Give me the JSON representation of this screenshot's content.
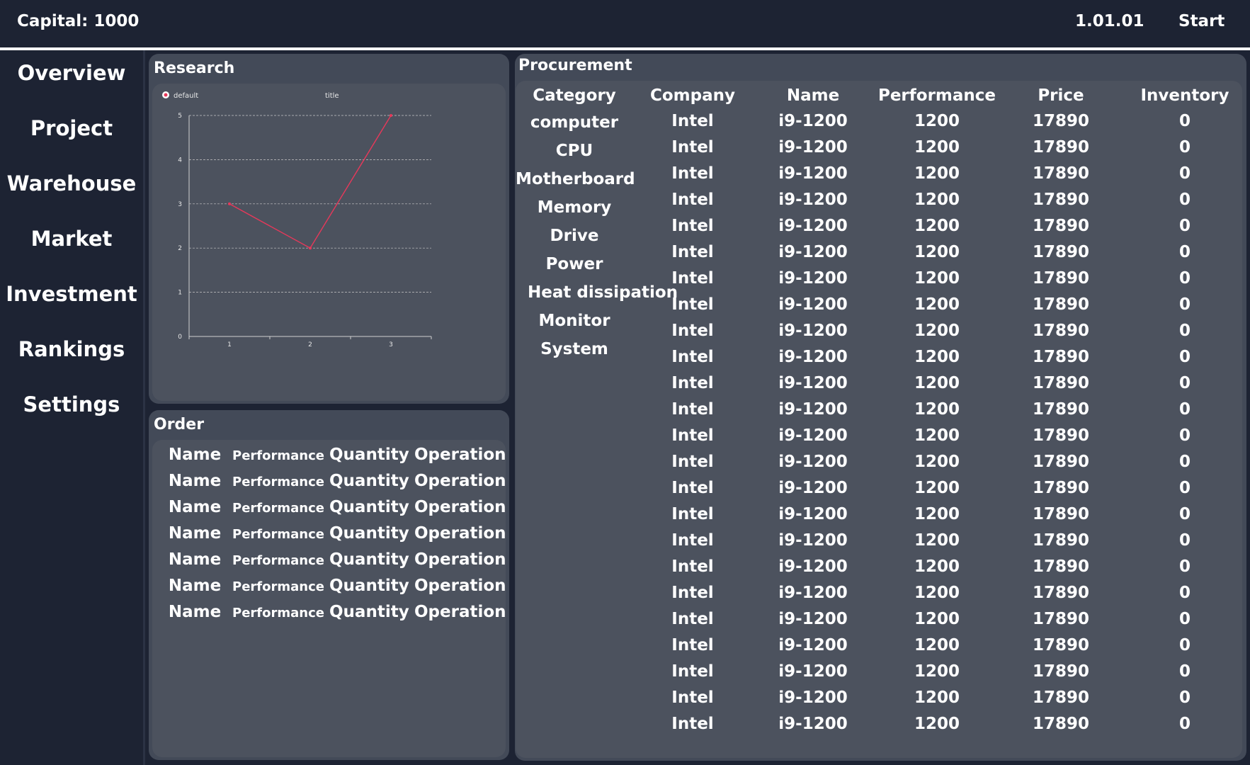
{
  "header": {
    "capital": "Capital: 1000",
    "version": "1.01.01",
    "start_label": "Start"
  },
  "sidebar": {
    "items": [
      {
        "label": "Overview"
      },
      {
        "label": "Project"
      },
      {
        "label": "Warehouse"
      },
      {
        "label": "Market"
      },
      {
        "label": "Investment"
      },
      {
        "label": "Rankings"
      },
      {
        "label": "Settings"
      }
    ]
  },
  "research": {
    "title": "Research"
  },
  "chart_data": {
    "type": "line",
    "title": "title",
    "x": [
      1,
      2,
      3
    ],
    "series": [
      {
        "name": "default",
        "values": [
          3,
          2,
          5
        ],
        "color": "#e8385a"
      }
    ],
    "x_ticks": [
      "1",
      "2",
      "3"
    ],
    "y_ticks": [
      "0",
      "1",
      "2",
      "3",
      "4",
      "5"
    ],
    "ylim": [
      0,
      5
    ],
    "xlim": [
      0.5,
      3.5
    ],
    "grid": true,
    "legend_position": "top-left"
  },
  "order": {
    "title": "Order",
    "rows": [
      {
        "name": "Name",
        "performance": "Performance",
        "quantity": "Quantity",
        "operation": "Operation"
      },
      {
        "name": "Name",
        "performance": "Performance",
        "quantity": "Quantity",
        "operation": "Operation"
      },
      {
        "name": "Name",
        "performance": "Performance",
        "quantity": "Quantity",
        "operation": "Operation"
      },
      {
        "name": "Name",
        "performance": "Performance",
        "quantity": "Quantity",
        "operation": "Operation"
      },
      {
        "name": "Name",
        "performance": "Performance",
        "quantity": "Quantity",
        "operation": "Operation"
      },
      {
        "name": "Name",
        "performance": "Performance",
        "quantity": "Quantity",
        "operation": "Operation"
      },
      {
        "name": "Name",
        "performance": "Performance",
        "quantity": "Quantity",
        "operation": "Operation"
      }
    ]
  },
  "procurement": {
    "title": "Procurement",
    "columns": [
      "Category",
      "Company",
      "Name",
      "Performance",
      "Price",
      "Inventory"
    ],
    "categories": [
      "computer",
      "CPU",
      "Motherboard",
      "Memory",
      "Drive",
      "Power",
      "Heat dissipation",
      "Monitor",
      "System"
    ],
    "rows": [
      {
        "company": "Intel",
        "name": "i9-1200",
        "performance": "1200",
        "price": "17890",
        "inventory": "0"
      },
      {
        "company": "Intel",
        "name": "i9-1200",
        "performance": "1200",
        "price": "17890",
        "inventory": "0"
      },
      {
        "company": "Intel",
        "name": "i9-1200",
        "performance": "1200",
        "price": "17890",
        "inventory": "0"
      },
      {
        "company": "Intel",
        "name": "i9-1200",
        "performance": "1200",
        "price": "17890",
        "inventory": "0"
      },
      {
        "company": "Intel",
        "name": "i9-1200",
        "performance": "1200",
        "price": "17890",
        "inventory": "0"
      },
      {
        "company": "Intel",
        "name": "i9-1200",
        "performance": "1200",
        "price": "17890",
        "inventory": "0"
      },
      {
        "company": "Intel",
        "name": "i9-1200",
        "performance": "1200",
        "price": "17890",
        "inventory": "0"
      },
      {
        "company": "Intel",
        "name": "i9-1200",
        "performance": "1200",
        "price": "17890",
        "inventory": "0"
      },
      {
        "company": "Intel",
        "name": "i9-1200",
        "performance": "1200",
        "price": "17890",
        "inventory": "0"
      },
      {
        "company": "Intel",
        "name": "i9-1200",
        "performance": "1200",
        "price": "17890",
        "inventory": "0"
      },
      {
        "company": "Intel",
        "name": "i9-1200",
        "performance": "1200",
        "price": "17890",
        "inventory": "0"
      },
      {
        "company": "Intel",
        "name": "i9-1200",
        "performance": "1200",
        "price": "17890",
        "inventory": "0"
      },
      {
        "company": "Intel",
        "name": "i9-1200",
        "performance": "1200",
        "price": "17890",
        "inventory": "0"
      },
      {
        "company": "Intel",
        "name": "i9-1200",
        "performance": "1200",
        "price": "17890",
        "inventory": "0"
      },
      {
        "company": "Intel",
        "name": "i9-1200",
        "performance": "1200",
        "price": "17890",
        "inventory": "0"
      },
      {
        "company": "Intel",
        "name": "i9-1200",
        "performance": "1200",
        "price": "17890",
        "inventory": "0"
      },
      {
        "company": "Intel",
        "name": "i9-1200",
        "performance": "1200",
        "price": "17890",
        "inventory": "0"
      },
      {
        "company": "Intel",
        "name": "i9-1200",
        "performance": "1200",
        "price": "17890",
        "inventory": "0"
      },
      {
        "company": "Intel",
        "name": "i9-1200",
        "performance": "1200",
        "price": "17890",
        "inventory": "0"
      },
      {
        "company": "Intel",
        "name": "i9-1200",
        "performance": "1200",
        "price": "17890",
        "inventory": "0"
      },
      {
        "company": "Intel",
        "name": "i9-1200",
        "performance": "1200",
        "price": "17890",
        "inventory": "0"
      },
      {
        "company": "Intel",
        "name": "i9-1200",
        "performance": "1200",
        "price": "17890",
        "inventory": "0"
      },
      {
        "company": "Intel",
        "name": "i9-1200",
        "performance": "1200",
        "price": "17890",
        "inventory": "0"
      },
      {
        "company": "Intel",
        "name": "i9-1200",
        "performance": "1200",
        "price": "17890",
        "inventory": "0"
      }
    ]
  },
  "colors": {
    "background": "#1d2333",
    "panel": "#434a58",
    "panel_inner": "#4c525e",
    "accent_line": "#e8385a",
    "text": "#ffffff"
  }
}
